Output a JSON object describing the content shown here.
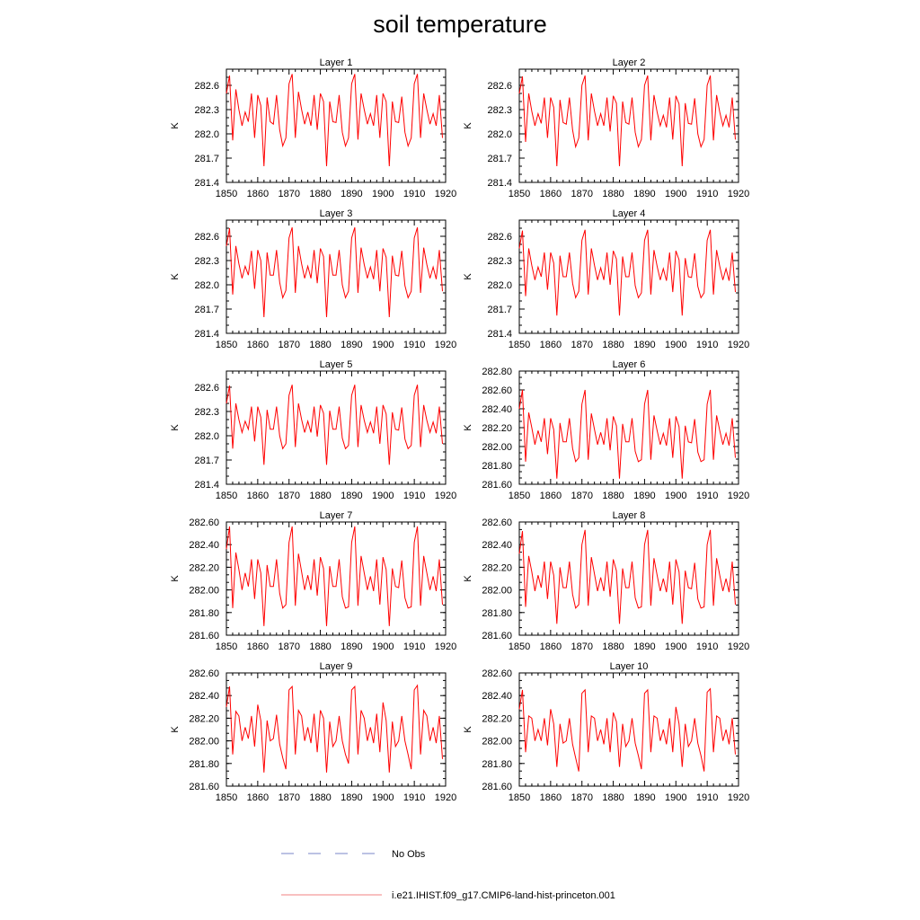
{
  "figure": {
    "title": "soil temperature",
    "legend": {
      "entries": [
        {
          "label": "No Obs",
          "color": "#7a86c8",
          "style": "dashed"
        },
        {
          "label": "i.e21.IHIST.f09_g17.CMIP6-land-hist-princeton.001",
          "color": "#f08080",
          "style": "solid"
        }
      ]
    },
    "colors": {
      "line": "#ff0000",
      "axis": "#000000"
    }
  },
  "chart_data": [
    {
      "type": "line",
      "title": "Layer 1",
      "ylabel": "K",
      "xlim": [
        1850,
        1920
      ],
      "ylim": [
        281.4,
        282.8
      ],
      "xticks": [
        "1850",
        "1860",
        "1870",
        "1880",
        "1890",
        "1900",
        "1910",
        "1920"
      ],
      "yticks": [
        "281.4",
        "281.7",
        "282.0",
        "282.3",
        "282.6"
      ],
      "x_start": 1850,
      "series": [
        {
          "values": [
            282.5,
            282.72,
            281.92,
            282.55,
            282.3,
            282.1,
            282.27,
            282.15,
            282.5,
            281.95,
            282.48,
            282.35,
            281.6,
            282.45,
            282.15,
            282.12,
            282.48,
            282.05,
            281.85,
            281.95,
            282.62,
            282.74,
            281.95,
            282.52,
            282.3,
            282.12,
            282.27,
            282.1,
            282.48,
            282.05,
            282.5,
            282.4,
            281.6,
            282.4,
            282.15,
            282.14,
            282.48,
            282.02,
            281.85,
            281.95,
            282.62,
            282.74,
            281.93,
            282.5,
            282.3,
            282.12,
            282.25,
            282.1,
            282.48,
            281.95,
            282.5,
            282.4,
            281.6,
            282.4,
            282.15,
            282.14,
            282.46,
            282.02,
            281.85,
            281.95,
            282.62,
            282.74,
            281.95,
            282.5,
            282.3,
            282.12,
            282.25,
            282.1,
            282.48,
            281.95
          ]
        }
      ]
    },
    {
      "type": "line",
      "title": "Layer 2",
      "ylabel": "K",
      "xlim": [
        1850,
        1920
      ],
      "ylim": [
        281.4,
        282.8
      ],
      "xticks": [
        "1850",
        "1860",
        "1870",
        "1880",
        "1890",
        "1900",
        "1910",
        "1920"
      ],
      "yticks": [
        "281.4",
        "281.7",
        "282.0",
        "282.3",
        "282.6"
      ],
      "x_start": 1850,
      "series": [
        {
          "values": [
            282.5,
            282.71,
            281.9,
            282.5,
            282.28,
            282.1,
            282.25,
            282.13,
            282.45,
            281.95,
            282.45,
            282.33,
            281.6,
            282.42,
            282.14,
            282.12,
            282.45,
            282.05,
            281.84,
            281.95,
            282.6,
            282.72,
            281.92,
            282.5,
            282.28,
            282.1,
            282.25,
            282.1,
            282.45,
            282.03,
            282.47,
            282.38,
            281.6,
            282.4,
            282.14,
            282.12,
            282.45,
            282.02,
            281.84,
            281.93,
            282.6,
            282.72,
            281.92,
            282.48,
            282.27,
            282.1,
            282.23,
            282.08,
            282.45,
            281.93,
            282.47,
            282.37,
            281.6,
            282.38,
            282.13,
            282.12,
            282.44,
            282.0,
            281.84,
            281.93,
            282.6,
            282.72,
            281.92,
            282.48,
            282.27,
            282.1,
            282.23,
            282.08,
            282.45,
            281.93
          ]
        }
      ]
    },
    {
      "type": "line",
      "title": "Layer 3",
      "ylabel": "K",
      "xlim": [
        1850,
        1920
      ],
      "ylim": [
        281.4,
        282.8
      ],
      "xticks": [
        "1850",
        "1860",
        "1870",
        "1880",
        "1890",
        "1900",
        "1910",
        "1920"
      ],
      "yticks": [
        "281.4",
        "281.7",
        "282.0",
        "282.3",
        "282.6"
      ],
      "x_start": 1850,
      "series": [
        {
          "values": [
            282.48,
            282.7,
            281.88,
            282.48,
            282.26,
            282.08,
            282.23,
            282.12,
            282.42,
            281.95,
            282.43,
            282.3,
            281.6,
            282.4,
            282.12,
            282.12,
            282.43,
            282.03,
            281.84,
            281.93,
            282.58,
            282.71,
            281.9,
            282.48,
            282.26,
            282.08,
            282.23,
            282.08,
            282.43,
            282.02,
            282.45,
            282.35,
            281.6,
            282.38,
            282.12,
            282.12,
            282.43,
            282.0,
            281.84,
            281.92,
            282.58,
            282.71,
            281.9,
            282.46,
            282.25,
            282.08,
            282.22,
            282.07,
            282.43,
            281.92,
            282.45,
            282.34,
            281.6,
            282.36,
            282.12,
            282.11,
            282.42,
            281.99,
            281.84,
            281.92,
            282.58,
            282.71,
            281.9,
            282.46,
            282.25,
            282.08,
            282.22,
            282.07,
            282.43,
            281.92
          ]
        }
      ]
    },
    {
      "type": "line",
      "title": "Layer 4",
      "ylabel": "K",
      "xlim": [
        1850,
        1920
      ],
      "ylim": [
        281.4,
        282.8
      ],
      "xticks": [
        "1850",
        "1860",
        "1870",
        "1880",
        "1890",
        "1900",
        "1910",
        "1920"
      ],
      "yticks": [
        "281.4",
        "281.7",
        "282.0",
        "282.3",
        "282.6"
      ],
      "x_start": 1850,
      "series": [
        {
          "values": [
            282.45,
            282.67,
            281.86,
            282.45,
            282.24,
            282.06,
            282.22,
            282.1,
            282.4,
            281.94,
            282.4,
            282.27,
            281.62,
            282.36,
            282.1,
            282.1,
            282.4,
            282.02,
            281.84,
            281.92,
            282.55,
            282.68,
            281.88,
            282.45,
            282.24,
            282.06,
            282.21,
            282.06,
            282.4,
            282.0,
            282.42,
            282.32,
            281.62,
            282.35,
            282.1,
            282.1,
            282.4,
            281.99,
            281.84,
            281.9,
            282.55,
            282.68,
            281.88,
            282.43,
            282.23,
            282.06,
            282.2,
            282.05,
            282.4,
            281.91,
            282.42,
            282.31,
            281.62,
            282.33,
            282.1,
            282.09,
            282.39,
            281.98,
            281.84,
            281.9,
            282.55,
            282.68,
            281.88,
            282.43,
            282.23,
            282.06,
            282.2,
            282.05,
            282.4,
            281.91
          ]
        }
      ]
    },
    {
      "type": "line",
      "title": "Layer 5",
      "ylabel": "K",
      "xlim": [
        1850,
        1920
      ],
      "ylim": [
        281.4,
        282.8
      ],
      "xticks": [
        "1850",
        "1860",
        "1870",
        "1880",
        "1890",
        "1900",
        "1910",
        "1920"
      ],
      "yticks": [
        "281.4",
        "281.7",
        "282.0",
        "282.3",
        "282.6"
      ],
      "x_start": 1850,
      "series": [
        {
          "values": [
            282.4,
            282.62,
            281.84,
            282.4,
            282.2,
            282.04,
            282.18,
            282.08,
            282.36,
            281.93,
            282.36,
            282.23,
            281.64,
            282.32,
            282.08,
            282.08,
            282.36,
            282.0,
            281.84,
            281.9,
            282.5,
            282.63,
            281.86,
            282.4,
            282.2,
            282.04,
            282.18,
            282.04,
            282.36,
            281.99,
            282.38,
            282.28,
            281.64,
            282.31,
            282.08,
            282.08,
            282.36,
            281.97,
            281.84,
            281.88,
            282.5,
            282.63,
            281.86,
            282.38,
            282.19,
            282.04,
            282.17,
            282.03,
            282.36,
            281.9,
            282.38,
            282.27,
            281.64,
            282.29,
            282.08,
            282.07,
            282.35,
            281.96,
            281.84,
            281.88,
            282.5,
            282.63,
            281.86,
            282.38,
            282.19,
            282.04,
            282.17,
            282.03,
            282.36,
            281.9
          ]
        }
      ]
    },
    {
      "type": "line",
      "title": "Layer 6",
      "ylabel": "K",
      "xlim": [
        1850,
        1920
      ],
      "ylim": [
        281.6,
        282.8
      ],
      "xticks": [
        "1850",
        "1860",
        "1870",
        "1880",
        "1890",
        "1900",
        "1910",
        "1920"
      ],
      "yticks": [
        "281.60",
        "281.80",
        "282.00",
        "282.20",
        "282.40",
        "282.60",
        "282.80"
      ],
      "x_start": 1850,
      "series": [
        {
          "values": [
            282.4,
            282.6,
            281.84,
            282.36,
            282.2,
            282.02,
            282.17,
            282.05,
            282.3,
            281.92,
            282.3,
            282.18,
            281.66,
            282.25,
            282.05,
            282.05,
            282.3,
            281.98,
            281.84,
            281.88,
            282.45,
            282.6,
            281.86,
            282.35,
            282.18,
            282.02,
            282.15,
            282.02,
            282.3,
            281.96,
            282.32,
            282.22,
            281.66,
            282.24,
            282.05,
            282.05,
            282.3,
            281.95,
            281.84,
            281.86,
            282.45,
            282.6,
            281.86,
            282.33,
            282.17,
            282.02,
            282.14,
            282.01,
            282.3,
            281.88,
            282.32,
            282.21,
            281.66,
            282.22,
            282.05,
            282.04,
            282.29,
            281.94,
            281.84,
            281.86,
            282.45,
            282.6,
            281.86,
            282.33,
            282.17,
            282.02,
            282.14,
            282.01,
            282.3,
            281.88
          ]
        }
      ]
    },
    {
      "type": "line",
      "title": "Layer 7",
      "ylabel": "K",
      "xlim": [
        1850,
        1920
      ],
      "ylim": [
        281.6,
        282.6
      ],
      "xticks": [
        "1850",
        "1860",
        "1870",
        "1880",
        "1890",
        "1900",
        "1910",
        "1920"
      ],
      "yticks": [
        "281.60",
        "281.80",
        "282.00",
        "282.20",
        "282.40",
        "282.60"
      ],
      "x_start": 1850,
      "series": [
        {
          "values": [
            282.36,
            282.56,
            281.84,
            282.33,
            282.18,
            282.0,
            282.15,
            282.03,
            282.27,
            281.92,
            282.27,
            282.15,
            281.68,
            282.22,
            282.03,
            282.03,
            282.27,
            281.97,
            281.84,
            281.87,
            282.42,
            282.56,
            281.86,
            282.32,
            282.16,
            282.0,
            282.13,
            282.0,
            282.27,
            281.95,
            282.29,
            282.19,
            281.68,
            282.21,
            282.03,
            282.03,
            282.27,
            281.94,
            281.84,
            281.85,
            282.42,
            282.56,
            281.86,
            282.3,
            282.15,
            282.0,
            282.12,
            281.99,
            282.27,
            281.87,
            282.29,
            282.18,
            281.68,
            282.19,
            282.03,
            282.02,
            282.26,
            281.93,
            281.84,
            281.85,
            282.42,
            282.56,
            281.86,
            282.3,
            282.15,
            282.0,
            282.12,
            281.99,
            282.27,
            281.87
          ]
        }
      ]
    },
    {
      "type": "line",
      "title": "Layer 8",
      "ylabel": "K",
      "xlim": [
        1850,
        1920
      ],
      "ylim": [
        281.6,
        282.6
      ],
      "xticks": [
        "1850",
        "1860",
        "1870",
        "1880",
        "1890",
        "1900",
        "1910",
        "1920"
      ],
      "yticks": [
        "281.60",
        "281.80",
        "282.00",
        "282.20",
        "282.40",
        "282.60"
      ],
      "x_start": 1850,
      "series": [
        {
          "values": [
            282.32,
            282.52,
            281.85,
            282.3,
            282.16,
            281.99,
            282.13,
            282.02,
            282.25,
            281.92,
            282.25,
            282.13,
            281.7,
            282.2,
            282.02,
            282.02,
            282.25,
            281.96,
            281.84,
            281.87,
            282.4,
            282.53,
            281.86,
            282.29,
            282.14,
            281.99,
            282.11,
            281.99,
            282.25,
            281.94,
            282.27,
            282.17,
            281.7,
            282.19,
            282.02,
            282.02,
            282.25,
            281.93,
            281.84,
            281.85,
            282.4,
            282.53,
            281.86,
            282.28,
            282.13,
            281.99,
            282.1,
            281.98,
            282.25,
            281.87,
            282.27,
            282.16,
            281.7,
            282.17,
            282.02,
            282.01,
            282.24,
            281.92,
            281.84,
            281.85,
            282.4,
            282.53,
            281.86,
            282.28,
            282.13,
            281.99,
            282.1,
            281.98,
            282.25,
            281.87
          ]
        }
      ]
    },
    {
      "type": "line",
      "title": "Layer 9",
      "ylabel": "K",
      "xlim": [
        1850,
        1920
      ],
      "ylim": [
        281.6,
        282.6
      ],
      "xticks": [
        "1850",
        "1860",
        "1870",
        "1880",
        "1890",
        "1900",
        "1910",
        "1920"
      ],
      "yticks": [
        "281.60",
        "281.80",
        "282.00",
        "282.20",
        "282.40",
        "282.60"
      ],
      "x_start": 1850,
      "series": [
        {
          "values": [
            282.3,
            282.48,
            281.88,
            282.26,
            282.22,
            282.0,
            282.12,
            282.02,
            282.22,
            281.95,
            282.32,
            282.18,
            281.72,
            282.18,
            282.0,
            282.02,
            282.23,
            281.97,
            281.85,
            281.75,
            282.45,
            282.48,
            281.88,
            282.27,
            282.22,
            282.0,
            282.12,
            281.98,
            282.24,
            281.9,
            282.27,
            282.2,
            281.72,
            282.17,
            281.95,
            282.0,
            282.22,
            282.0,
            281.88,
            281.8,
            282.45,
            282.48,
            281.88,
            282.27,
            282.2,
            282.0,
            282.12,
            281.98,
            282.24,
            281.9,
            282.34,
            282.18,
            281.72,
            282.17,
            281.95,
            282.0,
            282.22,
            282.0,
            281.88,
            281.75,
            282.45,
            282.49,
            281.88,
            282.27,
            282.22,
            282.0,
            282.12,
            281.98,
            282.22,
            281.84
          ]
        }
      ]
    },
    {
      "type": "line",
      "title": "Layer 10",
      "ylabel": "K",
      "xlim": [
        1850,
        1920
      ],
      "ylim": [
        281.6,
        282.6
      ],
      "xticks": [
        "1850",
        "1860",
        "1870",
        "1880",
        "1890",
        "1900",
        "1910",
        "1920"
      ],
      "yticks": [
        "281.60",
        "281.80",
        "282.00",
        "282.20",
        "282.40",
        "282.60"
      ],
      "x_start": 1850,
      "series": [
        {
          "values": [
            282.28,
            282.45,
            281.9,
            282.22,
            282.2,
            282.0,
            282.1,
            282.0,
            282.2,
            281.96,
            282.28,
            282.15,
            281.77,
            282.15,
            281.98,
            282.0,
            282.2,
            281.97,
            281.85,
            281.73,
            282.42,
            282.45,
            281.9,
            282.22,
            282.2,
            282.0,
            282.1,
            281.97,
            282.2,
            281.9,
            282.25,
            282.17,
            281.77,
            282.15,
            281.95,
            282.0,
            282.2,
            281.98,
            281.87,
            281.75,
            282.42,
            282.45,
            281.9,
            282.22,
            282.2,
            282.0,
            282.1,
            281.97,
            282.2,
            281.9,
            282.3,
            282.15,
            281.77,
            282.15,
            281.95,
            282.0,
            282.2,
            281.98,
            281.87,
            281.73,
            282.43,
            282.46,
            281.9,
            282.22,
            282.2,
            282.0,
            282.1,
            281.97,
            282.2,
            281.88
          ]
        }
      ]
    }
  ]
}
